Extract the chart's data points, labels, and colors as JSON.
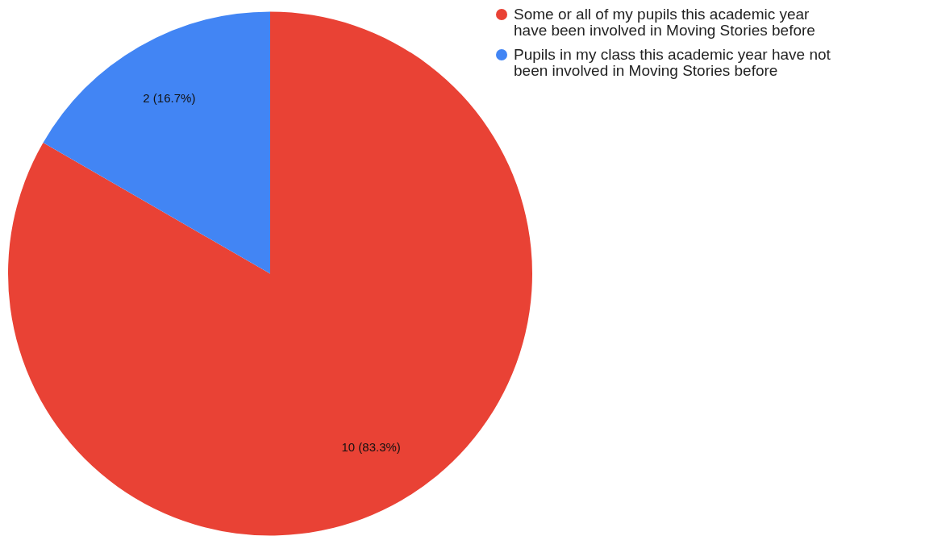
{
  "chart_data": {
    "type": "pie",
    "categories": [
      "Some or all of my pupils this academic year have been involved in Moving Stories before",
      "Pupils in my class this academic year have not been involved in Moving Stories before"
    ],
    "values": [
      10,
      2
    ],
    "colors": [
      "#e94235",
      "#4285f4"
    ],
    "value_labels": [
      "10 (83.3%)",
      "2 (16.7%)"
    ],
    "legend": "top right"
  }
}
